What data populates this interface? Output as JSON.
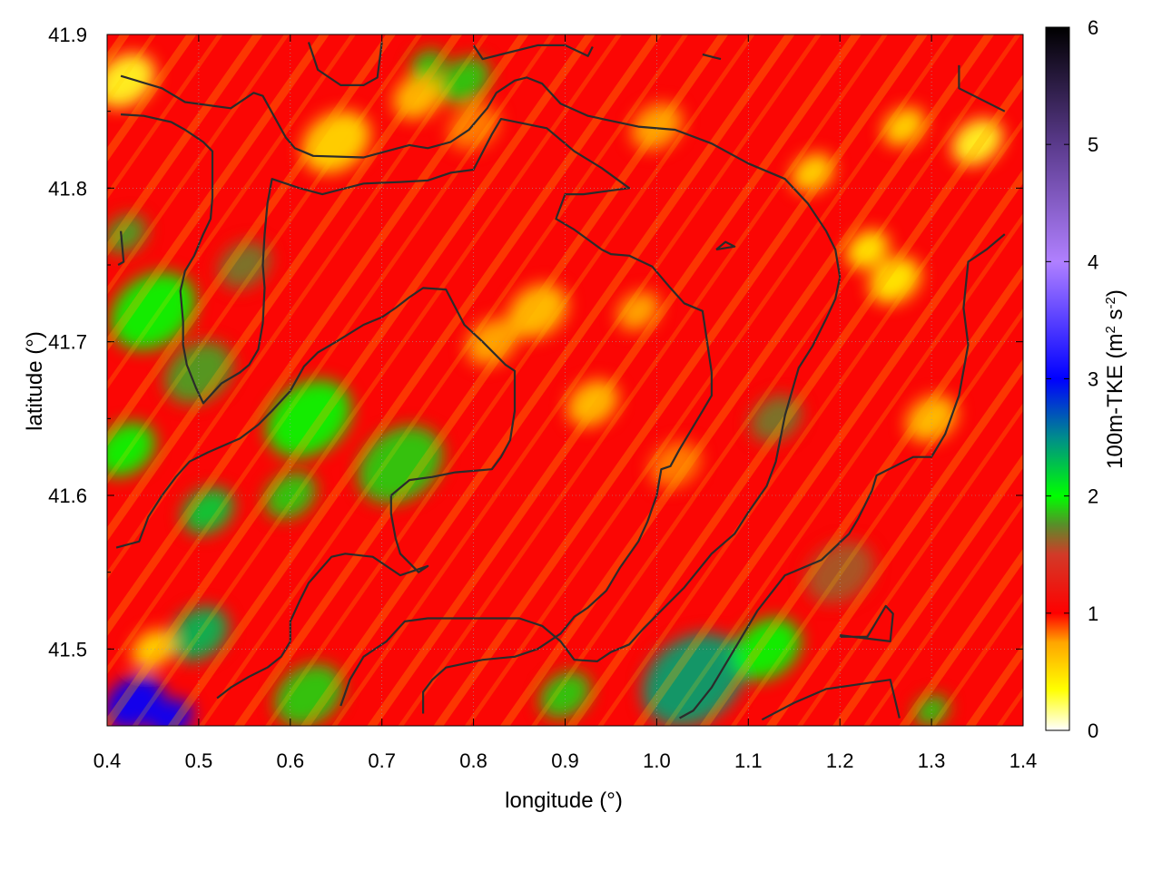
{
  "chart_data": {
    "type": "heatmap",
    "title": "",
    "xlabel": "longitude (°)",
    "ylabel": "latitude (°)",
    "xlim": [
      0.4,
      1.4
    ],
    "ylim": [
      41.45,
      41.9
    ],
    "x_ticks": [
      "0.4",
      "0.5",
      "0.6",
      "0.7",
      "0.8",
      "0.9",
      "1.0",
      "1.1",
      "1.2",
      "1.3",
      "1.4"
    ],
    "y_ticks": [
      "41.5",
      "41.6",
      "41.7",
      "41.8",
      "41.9"
    ],
    "grid": true,
    "colorbar": {
      "label_main": "100m-TKE (m",
      "label_sup1": "2",
      "label_mid": " s",
      "label_sup2": "-2",
      "label_end": ")",
      "range": [
        0,
        6
      ],
      "ticks": [
        "0",
        "1",
        "2",
        "3",
        "4",
        "5",
        "6"
      ],
      "colors": [
        {
          "v": 0.0,
          "c": "#ffffff"
        },
        {
          "v": 0.35,
          "c": "#ffff00"
        },
        {
          "v": 0.75,
          "c": "#ffa500"
        },
        {
          "v": 1.0,
          "c": "#ff0000"
        },
        {
          "v": 1.5,
          "c": "#d23a28"
        },
        {
          "v": 1.75,
          "c": "#5a8c2a"
        },
        {
          "v": 2.0,
          "c": "#00ff00"
        },
        {
          "v": 2.5,
          "c": "#008c8c"
        },
        {
          "v": 3.0,
          "c": "#0000ff"
        },
        {
          "v": 4.0,
          "c": "#b080ff"
        },
        {
          "v": 5.0,
          "c": "#5a3a8c"
        },
        {
          "v": 6.0,
          "c": "#000000"
        }
      ]
    },
    "field_hotspots": [
      {
        "lon": 0.42,
        "lat": 41.87,
        "tke": 0.3,
        "r": 0.035
      },
      {
        "lon": 0.65,
        "lat": 41.83,
        "tke": 0.5,
        "r": 0.04
      },
      {
        "lon": 0.74,
        "lat": 41.86,
        "tke": 0.6,
        "r": 0.03
      },
      {
        "lon": 0.79,
        "lat": 41.87,
        "tke": 1.9,
        "r": 0.03
      },
      {
        "lon": 0.75,
        "lat": 41.88,
        "tke": 1.9,
        "r": 0.02
      },
      {
        "lon": 0.45,
        "lat": 41.72,
        "tke": 2.0,
        "r": 0.05
      },
      {
        "lon": 0.5,
        "lat": 41.68,
        "tke": 1.8,
        "r": 0.04
      },
      {
        "lon": 0.62,
        "lat": 41.65,
        "tke": 2.0,
        "r": 0.05
      },
      {
        "lon": 0.72,
        "lat": 41.62,
        "tke": 1.9,
        "r": 0.05
      },
      {
        "lon": 0.42,
        "lat": 41.63,
        "tke": 2.0,
        "r": 0.035
      },
      {
        "lon": 0.51,
        "lat": 41.59,
        "tke": 2.2,
        "r": 0.03
      },
      {
        "lon": 0.6,
        "lat": 41.6,
        "tke": 1.9,
        "r": 0.03
      },
      {
        "lon": 0.5,
        "lat": 41.51,
        "tke": 2.3,
        "r": 0.035
      },
      {
        "lon": 0.62,
        "lat": 41.47,
        "tke": 1.9,
        "r": 0.04
      },
      {
        "lon": 0.43,
        "lat": 41.465,
        "tke": 3.0,
        "r": 0.035
      },
      {
        "lon": 0.47,
        "lat": 41.455,
        "tke": 3.0,
        "r": 0.025
      },
      {
        "lon": 0.45,
        "lat": 41.5,
        "tke": 0.5,
        "r": 0.025
      },
      {
        "lon": 1.04,
        "lat": 41.48,
        "tke": 2.4,
        "r": 0.06
      },
      {
        "lon": 1.12,
        "lat": 41.5,
        "tke": 2.0,
        "r": 0.04
      },
      {
        "lon": 0.9,
        "lat": 41.47,
        "tke": 1.9,
        "r": 0.03
      },
      {
        "lon": 1.3,
        "lat": 41.46,
        "tke": 1.9,
        "r": 0.02
      },
      {
        "lon": 0.87,
        "lat": 41.72,
        "tke": 0.6,
        "r": 0.035
      },
      {
        "lon": 0.93,
        "lat": 41.66,
        "tke": 0.6,
        "r": 0.03
      },
      {
        "lon": 0.82,
        "lat": 41.7,
        "tke": 0.7,
        "r": 0.03
      },
      {
        "lon": 0.98,
        "lat": 41.72,
        "tke": 0.7,
        "r": 0.025
      },
      {
        "lon": 1.26,
        "lat": 41.74,
        "tke": 0.4,
        "r": 0.03
      },
      {
        "lon": 1.23,
        "lat": 41.76,
        "tke": 0.4,
        "r": 0.025
      },
      {
        "lon": 1.35,
        "lat": 41.83,
        "tke": 0.3,
        "r": 0.03
      },
      {
        "lon": 1.17,
        "lat": 41.81,
        "tke": 0.5,
        "r": 0.025
      },
      {
        "lon": 1.27,
        "lat": 41.84,
        "tke": 0.5,
        "r": 0.025
      },
      {
        "lon": 1.3,
        "lat": 41.65,
        "tke": 0.6,
        "r": 0.03
      },
      {
        "lon": 1.0,
        "lat": 41.84,
        "tke": 0.7,
        "r": 0.03
      },
      {
        "lon": 0.8,
        "lat": 41.84,
        "tke": 0.8,
        "r": 0.03
      },
      {
        "lon": 1.02,
        "lat": 41.62,
        "tke": 0.8,
        "r": 0.03
      },
      {
        "lon": 1.13,
        "lat": 41.65,
        "tke": 1.7,
        "r": 0.03
      },
      {
        "lon": 1.2,
        "lat": 41.55,
        "tke": 1.6,
        "r": 0.04
      },
      {
        "lon": 0.55,
        "lat": 41.75,
        "tke": 1.7,
        "r": 0.03
      },
      {
        "lon": 0.42,
        "lat": 41.77,
        "tke": 1.8,
        "r": 0.025
      }
    ],
    "contours": [
      [
        [
          0.415,
          41.873
        ],
        [
          0.46,
          41.865
        ],
        [
          0.485,
          41.856
        ],
        [
          0.535,
          41.852
        ],
        [
          0.56,
          41.862
        ],
        [
          0.57,
          41.86
        ],
        [
          0.595,
          41.833
        ],
        [
          0.605,
          41.826
        ],
        [
          0.625,
          41.821
        ],
        [
          0.68,
          41.82
        ],
        [
          0.73,
          41.828
        ],
        [
          0.75,
          41.826
        ],
        [
          0.775,
          41.83
        ],
        [
          0.795,
          41.838
        ],
        [
          0.815,
          41.852
        ],
        [
          0.825,
          41.862
        ],
        [
          0.845,
          41.87
        ],
        [
          0.858,
          41.872
        ],
        [
          0.875,
          41.868
        ],
        [
          0.895,
          41.855
        ],
        [
          0.925,
          41.847
        ],
        [
          0.98,
          41.84
        ],
        [
          1.02,
          41.838
        ],
        [
          1.06,
          41.829
        ],
        [
          1.1,
          41.816
        ],
        [
          1.14,
          41.806
        ],
        [
          1.165,
          41.79
        ],
        [
          1.185,
          41.772
        ],
        [
          1.195,
          41.76
        ],
        [
          1.2,
          41.742
        ],
        [
          1.195,
          41.728
        ],
        [
          1.185,
          41.715
        ],
        [
          1.17,
          41.697
        ],
        [
          1.155,
          41.683
        ],
        [
          1.14,
          41.652
        ],
        [
          1.13,
          41.622
        ],
        [
          1.12,
          41.606
        ],
        [
          1.1,
          41.589
        ],
        [
          1.085,
          41.575
        ],
        [
          1.06,
          41.562
        ],
        [
          1.03,
          41.54
        ],
        [
          1.005,
          41.525
        ],
        [
          0.985,
          41.513
        ],
        [
          0.97,
          41.503
        ],
        [
          0.95,
          41.498
        ],
        [
          0.935,
          41.492
        ],
        [
          0.91,
          41.493
        ],
        [
          0.895,
          41.505
        ],
        [
          0.875,
          41.515
        ],
        [
          0.85,
          41.52
        ],
        [
          0.8,
          41.52
        ],
        [
          0.75,
          41.52
        ],
        [
          0.725,
          41.518
        ],
        [
          0.705,
          41.505
        ],
        [
          0.68,
          41.495
        ],
        [
          0.665,
          41.48
        ],
        [
          0.655,
          41.463
        ]
      ],
      [
        [
          0.415,
          41.848
        ],
        [
          0.44,
          41.847
        ],
        [
          0.47,
          41.843
        ],
        [
          0.485,
          41.838
        ],
        [
          0.505,
          41.83
        ],
        [
          0.515,
          41.824
        ],
        [
          0.515,
          41.806
        ],
        [
          0.515,
          41.794
        ],
        [
          0.513,
          41.78
        ],
        [
          0.505,
          41.77
        ],
        [
          0.495,
          41.756
        ],
        [
          0.485,
          41.746
        ],
        [
          0.48,
          41.733
        ],
        [
          0.483,
          41.713
        ],
        [
          0.483,
          41.698
        ],
        [
          0.487,
          41.685
        ],
        [
          0.497,
          41.67
        ],
        [
          0.505,
          41.66
        ],
        [
          0.525,
          41.673
        ],
        [
          0.545,
          41.68
        ],
        [
          0.555,
          41.685
        ],
        [
          0.565,
          41.695
        ],
        [
          0.57,
          41.712
        ],
        [
          0.572,
          41.735
        ],
        [
          0.57,
          41.75
        ],
        [
          0.572,
          41.77
        ],
        [
          0.575,
          41.79
        ],
        [
          0.58,
          41.806
        ],
        [
          0.61,
          41.8
        ],
        [
          0.635,
          41.796
        ],
        [
          0.68,
          41.803
        ],
        [
          0.72,
          41.804
        ],
        [
          0.75,
          41.805
        ],
        [
          0.775,
          41.81
        ],
        [
          0.8,
          41.812
        ],
        [
          0.82,
          41.835
        ],
        [
          0.83,
          41.845
        ],
        [
          0.88,
          41.839
        ],
        [
          0.91,
          41.824
        ],
        [
          0.94,
          41.813
        ],
        [
          0.97,
          41.8
        ],
        [
          0.92,
          41.796
        ],
        [
          0.9,
          41.796
        ],
        [
          0.89,
          41.78
        ],
        [
          0.91,
          41.773
        ],
        [
          0.94,
          41.76
        ],
        [
          0.95,
          41.757
        ],
        [
          0.97,
          41.756
        ],
        [
          0.995,
          41.749
        ],
        [
          1.015,
          41.735
        ],
        [
          1.03,
          41.725
        ],
        [
          1.05,
          41.72
        ],
        [
          1.055,
          41.7
        ],
        [
          1.06,
          41.68
        ],
        [
          1.06,
          41.665
        ],
        [
          1.05,
          41.655
        ],
        [
          1.035,
          41.64
        ],
        [
          1.025,
          41.63
        ],
        [
          1.015,
          41.619
        ],
        [
          1.005,
          41.617
        ],
        [
          1.0,
          41.6
        ],
        [
          0.99,
          41.583
        ],
        [
          0.98,
          41.57
        ],
        [
          0.96,
          41.553
        ],
        [
          0.945,
          41.538
        ],
        [
          0.925,
          41.527
        ],
        [
          0.91,
          41.521
        ],
        [
          0.895,
          41.51
        ],
        [
          0.87,
          41.5
        ],
        [
          0.845,
          41.495
        ],
        [
          0.81,
          41.493
        ],
        [
          0.77,
          41.488
        ],
        [
          0.755,
          41.48
        ],
        [
          0.745,
          41.472
        ],
        [
          0.745,
          41.458
        ]
      ],
      [
        [
          0.41,
          41.566
        ],
        [
          0.435,
          41.57
        ],
        [
          0.445,
          41.586
        ],
        [
          0.46,
          41.6
        ],
        [
          0.475,
          41.612
        ],
        [
          0.49,
          41.622
        ],
        [
          0.51,
          41.628
        ],
        [
          0.545,
          41.637
        ],
        [
          0.565,
          41.646
        ],
        [
          0.58,
          41.655
        ],
        [
          0.6,
          41.668
        ],
        [
          0.615,
          41.684
        ],
        [
          0.63,
          41.693
        ],
        [
          0.65,
          41.7
        ],
        [
          0.68,
          41.711
        ],
        [
          0.7,
          41.716
        ],
        [
          0.715,
          41.722
        ],
        [
          0.73,
          41.729
        ],
        [
          0.745,
          41.735
        ],
        [
          0.77,
          41.734
        ],
        [
          0.79,
          41.711
        ],
        [
          0.81,
          41.7
        ],
        [
          0.835,
          41.685
        ],
        [
          0.845,
          41.681
        ],
        [
          0.845,
          41.655
        ],
        [
          0.84,
          41.636
        ],
        [
          0.83,
          41.625
        ],
        [
          0.82,
          41.617
        ],
        [
          0.78,
          41.615
        ],
        [
          0.755,
          41.612
        ],
        [
          0.73,
          41.61
        ],
        [
          0.71,
          41.6
        ],
        [
          0.71,
          41.588
        ],
        [
          0.715,
          41.572
        ],
        [
          0.72,
          41.562
        ],
        [
          0.74,
          41.55
        ],
        [
          0.75,
          41.554
        ],
        [
          0.72,
          41.548
        ],
        [
          0.69,
          41.56
        ],
        [
          0.66,
          41.562
        ],
        [
          0.645,
          41.56
        ],
        [
          0.62,
          41.543
        ],
        [
          0.61,
          41.531
        ],
        [
          0.6,
          41.518
        ],
        [
          0.6,
          41.505
        ],
        [
          0.59,
          41.495
        ],
        [
          0.575,
          41.488
        ],
        [
          0.555,
          41.482
        ],
        [
          0.535,
          41.475
        ],
        [
          0.52,
          41.468
        ]
      ],
      [
        [
          1.115,
          41.454
        ],
        [
          1.15,
          41.465
        ],
        [
          1.185,
          41.474
        ],
        [
          1.22,
          41.477
        ],
        [
          1.255,
          41.48
        ],
        [
          1.265,
          41.455
        ]
      ],
      [
        [
          1.2,
          41.508
        ],
        [
          1.23,
          41.508
        ],
        [
          1.25,
          41.528
        ],
        [
          1.258,
          41.523
        ],
        [
          1.255,
          41.505
        ],
        [
          1.2,
          41.509
        ]
      ],
      [
        [
          1.33,
          41.88
        ],
        [
          1.33,
          41.865
        ],
        [
          1.38,
          41.85
        ]
      ],
      [
        [
          1.38,
          41.77
        ],
        [
          1.36,
          41.76
        ],
        [
          1.34,
          41.752
        ],
        [
          1.335,
          41.722
        ],
        [
          1.34,
          41.698
        ],
        [
          1.33,
          41.665
        ],
        [
          1.315,
          41.64
        ],
        [
          1.3,
          41.625
        ],
        [
          1.28,
          41.625
        ],
        [
          1.24,
          41.613
        ],
        [
          1.235,
          41.603
        ],
        [
          1.22,
          41.585
        ],
        [
          1.21,
          41.575
        ],
        [
          1.18,
          41.558
        ],
        [
          1.14,
          41.548
        ],
        [
          1.11,
          41.525
        ],
        [
          1.08,
          41.495
        ],
        [
          1.06,
          41.475
        ],
        [
          1.04,
          41.46
        ],
        [
          1.025,
          41.455
        ]
      ],
      [
        [
          0.62,
          41.895
        ],
        [
          0.63,
          41.877
        ],
        [
          0.655,
          41.867
        ],
        [
          0.68,
          41.867
        ],
        [
          0.695,
          41.872
        ],
        [
          0.7,
          41.895
        ]
      ],
      [
        [
          0.8,
          41.893
        ],
        [
          0.81,
          41.884
        ],
        [
          0.83,
          41.887
        ],
        [
          0.87,
          41.893
        ],
        [
          0.9,
          41.893
        ],
        [
          0.925,
          41.886
        ],
        [
          0.93,
          41.892
        ]
      ],
      [
        [
          1.05,
          41.887
        ],
        [
          1.07,
          41.884
        ]
      ],
      [
        [
          0.415,
          41.772
        ],
        [
          0.418,
          41.752
        ],
        [
          0.412,
          41.75
        ]
      ],
      [
        [
          1.065,
          41.76
        ],
        [
          1.075,
          41.765
        ],
        [
          1.085,
          41.762
        ],
        [
          1.065,
          41.76
        ]
      ]
    ]
  }
}
